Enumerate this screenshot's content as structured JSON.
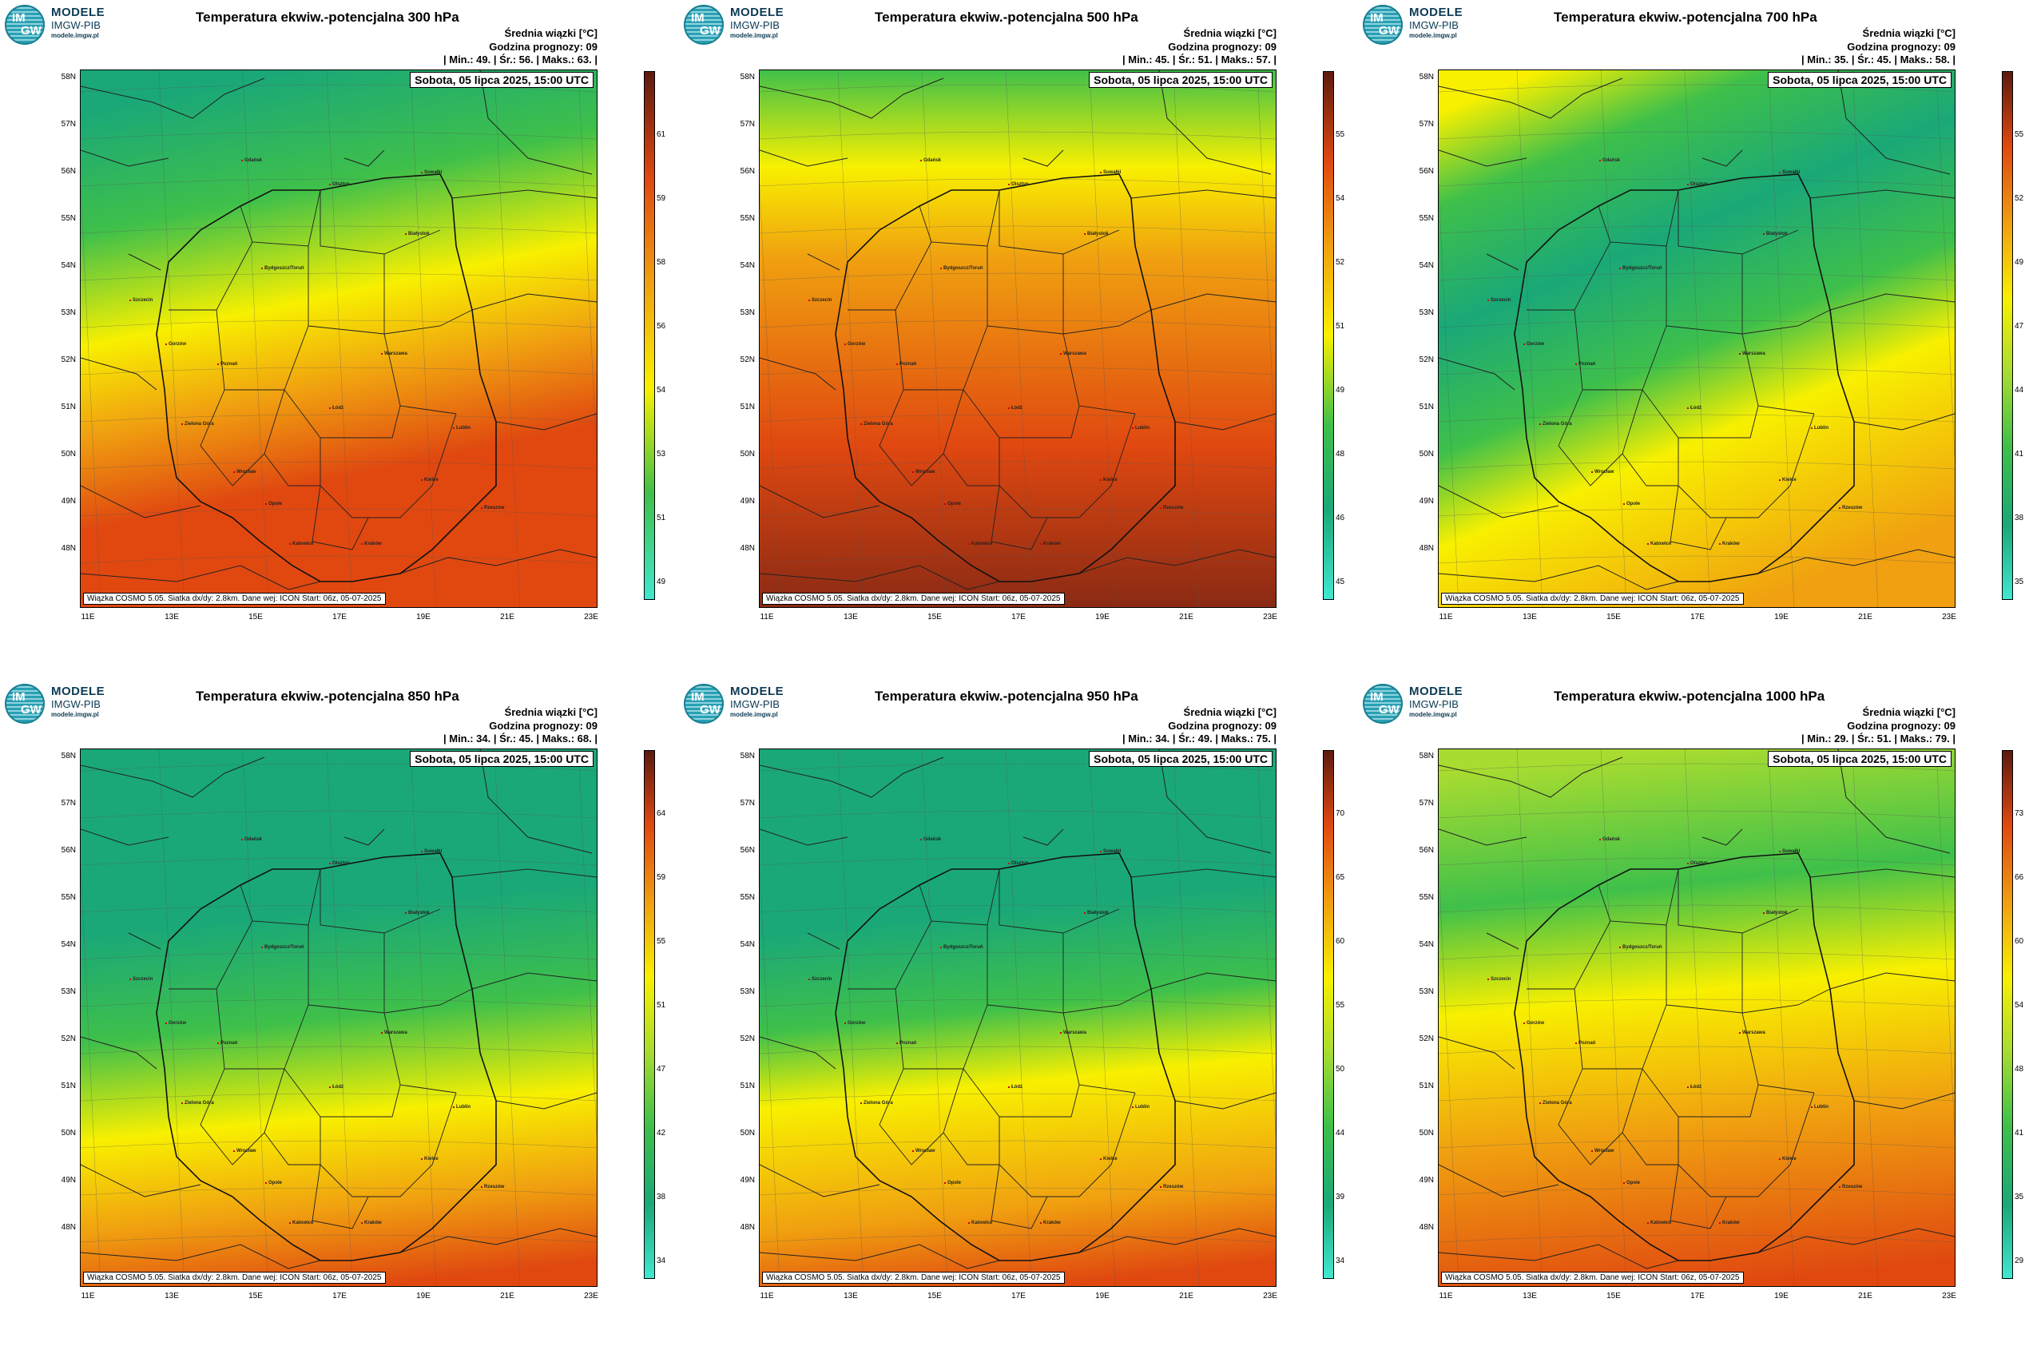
{
  "colors": {
    "cyan": "#40e8d0",
    "teal": "#1aa878",
    "green": "#3fc04a",
    "lime": "#a8dc30",
    "yellow": "#f8f000",
    "orange": "#f0a010",
    "red_orange": "#e04810",
    "dark_red": "#5c1a10"
  },
  "logo": {
    "mark_top": "IM",
    "mark_bottom": "GW",
    "line1": "MODELE",
    "line2": "IMGW-PIB",
    "line3": "modele.imgw.pl"
  },
  "common": {
    "mean_label": "Średnia wiązki [°C]",
    "forecast_hour": "Godzina prognozy: 09",
    "date": "Sobota, 05 lipca 2025, 15:00 UTC",
    "footer": "Wiązka COSMO 5.05. Siatka dx/dy: 2.8km. Dane wej: ICON Start: 06z, 05-07-2025",
    "lat_labels": [
      "58N",
      "57N",
      "56N",
      "55N",
      "54N",
      "53N",
      "52N",
      "51N",
      "50N",
      "49N",
      "48N"
    ],
    "lon_labels": [
      "11E",
      "13E",
      "15E",
      "17E",
      "19E",
      "21E",
      "23E"
    ],
    "cities": [
      "Gdańsk",
      "Olsztyn",
      "Białystok",
      "Szczecin",
      "Bydgoszcz/Toruń",
      "Gorzów",
      "Poznań",
      "Warszawa",
      "Zielona Góra",
      "Łódź",
      "Lublin",
      "Wrocław",
      "Opole",
      "Kielce",
      "Rzeszów",
      "Katowice",
      "Kraków",
      "Zakopane",
      "Suwałki"
    ]
  },
  "panels": [
    {
      "title": "Temperatura ekwiw.-potencjalna 300 hPa",
      "stats": "| Min.:    49. | Śr.:    56. | Maks.:   63. |",
      "colorbar_ticks": [
        "61",
        "59",
        "58",
        "56",
        "54",
        "53",
        "51",
        "49"
      ]
    },
    {
      "title": "Temperatura ekwiw.-potencjalna 500 hPa",
      "stats": "| Min.:    45. | Śr.:    51. | Maks.:   57. |",
      "colorbar_ticks": [
        "55",
        "54",
        "52",
        "51",
        "49",
        "48",
        "46",
        "45"
      ]
    },
    {
      "title": "Temperatura ekwiw.-potencjalna 700 hPa",
      "stats": "| Min.:    35. | Śr.:    45. | Maks.:   58. |",
      "colorbar_ticks": [
        "55",
        "52",
        "49",
        "47",
        "44",
        "41",
        "38",
        "35"
      ]
    },
    {
      "title": "Temperatura ekwiw.-potencjalna 850 hPa",
      "stats": "| Min.:    34. | Śr.:    45. | Maks.:   68. |",
      "colorbar_ticks": [
        "64",
        "59",
        "55",
        "51",
        "47",
        "42",
        "38",
        "34"
      ]
    },
    {
      "title": "Temperatura ekwiw.-potencjalna 950 hPa",
      "stats": "| Min.:    34. | Śr.:    49. | Maks.:   75. |",
      "colorbar_ticks": [
        "70",
        "65",
        "60",
        "55",
        "50",
        "44",
        "39",
        "34"
      ]
    },
    {
      "title": "Temperatura ekwiw.-potencjalna 1000 hPa",
      "stats": "| Min.:    29. | Śr.:    51. | Maks.:   79. |",
      "colorbar_ticks": [
        "73",
        "66",
        "60",
        "54",
        "48",
        "41",
        "35",
        "29"
      ]
    }
  ]
}
